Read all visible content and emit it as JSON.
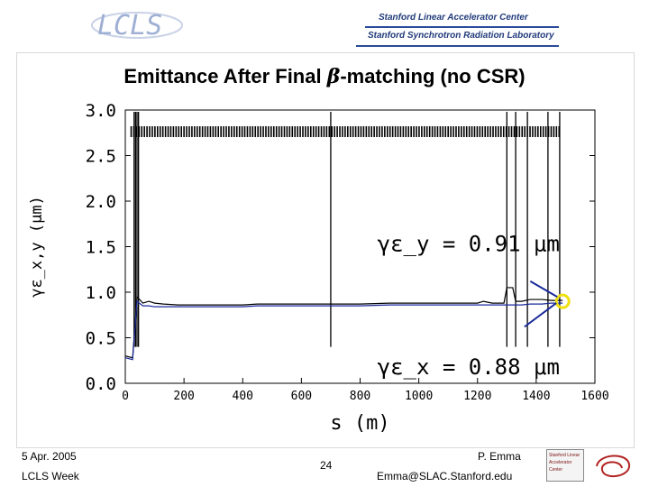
{
  "header": {
    "logo_text": "LCLS",
    "institution_line1": "Stanford Linear Accelerator Center",
    "institution_line2": "Stanford Synchrotron Radiation Laboratory"
  },
  "slide": {
    "title_before": "Emittance After Final ",
    "title_beta": "β",
    "title_after": "-matching (no CSR)"
  },
  "footer": {
    "date": "5 Apr. 2005",
    "event": "LCLS Week",
    "page": "24",
    "author": "P. Emma",
    "email": "Emma@SLAC.Stanford.edu",
    "badge_text": "Stanford Linear Accelerator Center"
  },
  "chart_data": {
    "type": "line",
    "xlabel": "s (m)",
    "ylabel": "γε_x,y (μm)",
    "xlim": [
      0,
      1600
    ],
    "ylim": [
      0,
      3.0
    ],
    "x_ticks": [
      "0",
      "200",
      "400",
      "600",
      "800",
      "1000",
      "1200",
      "1400",
      "1600"
    ],
    "y_ticks": [
      "0.0",
      "0.5",
      "1.0",
      "1.5",
      "2.0",
      "2.5",
      "3.0"
    ],
    "annotations": [
      {
        "text": "γε_y = 0.91 μm",
        "x": 1480,
        "y": 1.45
      },
      {
        "text": "γε_x = 0.88 μm",
        "x": 1480,
        "y": 0.1
      }
    ],
    "series": [
      {
        "color": "#000000",
        "x": [
          0,
          25,
          40,
          60,
          80,
          100,
          130,
          180,
          250,
          300,
          380,
          400,
          450,
          500,
          600,
          700,
          800,
          900,
          1000,
          1050,
          1100,
          1150,
          1180,
          1200,
          1220,
          1250,
          1270,
          1290,
          1300,
          1320,
          1330,
          1350,
          1380,
          1400,
          1420,
          1450,
          1470,
          1490
        ],
        "y": [
          0.3,
          0.28,
          0.95,
          0.88,
          0.9,
          0.88,
          0.87,
          0.86,
          0.86,
          0.86,
          0.86,
          0.86,
          0.87,
          0.87,
          0.87,
          0.87,
          0.87,
          0.88,
          0.88,
          0.88,
          0.88,
          0.88,
          0.88,
          0.88,
          0.9,
          0.88,
          0.88,
          0.88,
          1.05,
          1.05,
          0.9,
          0.9,
          0.92,
          0.92,
          0.92,
          0.91,
          0.91,
          0.91
        ]
      },
      {
        "color": "#1a2a9a",
        "x": [
          0,
          25,
          40,
          60,
          80,
          100,
          130,
          180,
          250,
          300,
          380,
          400,
          450,
          500,
          600,
          700,
          800,
          900,
          1000,
          1050,
          1100,
          1150,
          1180,
          1200,
          1220,
          1250,
          1270,
          1290,
          1300,
          1320,
          1330,
          1350,
          1380,
          1400,
          1420,
          1450,
          1470,
          1490
        ],
        "y": [
          0.28,
          0.26,
          0.9,
          0.85,
          0.85,
          0.84,
          0.84,
          0.84,
          0.84,
          0.84,
          0.84,
          0.84,
          0.85,
          0.85,
          0.85,
          0.85,
          0.85,
          0.86,
          0.86,
          0.86,
          0.86,
          0.86,
          0.86,
          0.86,
          0.86,
          0.86,
          0.86,
          0.86,
          0.86,
          0.86,
          0.86,
          0.86,
          0.87,
          0.87,
          0.87,
          0.88,
          0.88,
          0.88
        ]
      }
    ],
    "marker": {
      "x": 1490,
      "y": 0.9,
      "color": "#f0e010"
    }
  }
}
